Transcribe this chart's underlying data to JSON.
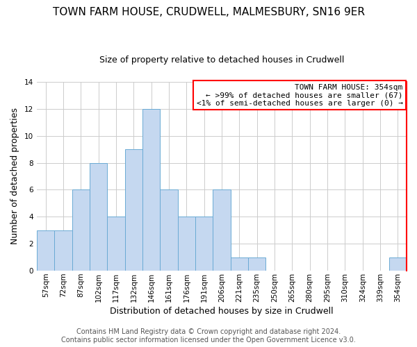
{
  "title": "TOWN FARM HOUSE, CRUDWELL, MALMESBURY, SN16 9ER",
  "subtitle": "Size of property relative to detached houses in Crudwell",
  "xlabel": "Distribution of detached houses by size in Crudwell",
  "ylabel": "Number of detached properties",
  "categories": [
    "57sqm",
    "72sqm",
    "87sqm",
    "102sqm",
    "117sqm",
    "132sqm",
    "146sqm",
    "161sqm",
    "176sqm",
    "191sqm",
    "206sqm",
    "221sqm",
    "235sqm",
    "250sqm",
    "265sqm",
    "280sqm",
    "295sqm",
    "310sqm",
    "324sqm",
    "339sqm",
    "354sqm"
  ],
  "values": [
    3,
    3,
    6,
    8,
    4,
    9,
    12,
    6,
    4,
    4,
    6,
    1,
    1,
    0,
    0,
    0,
    0,
    0,
    0,
    0,
    1
  ],
  "bar_color": "#c5d8f0",
  "bar_edge_color": "#6aaad4",
  "highlight_color": "red",
  "highlight_x_right": true,
  "ylim": [
    0,
    14
  ],
  "yticks": [
    0,
    2,
    4,
    6,
    8,
    10,
    12,
    14
  ],
  "annotation_title": "TOWN FARM HOUSE: 354sqm",
  "annotation_line1": "← >99% of detached houses are smaller (67)",
  "annotation_line2": "<1% of semi-detached houses are larger (0) →",
  "footer_line1": "Contains HM Land Registry data © Crown copyright and database right 2024.",
  "footer_line2": "Contains public sector information licensed under the Open Government Licence v3.0.",
  "background_color": "#ffffff",
  "plot_background_color": "#ffffff",
  "grid_color": "#cccccc",
  "title_fontsize": 11,
  "subtitle_fontsize": 9,
  "ylabel_fontsize": 9,
  "xlabel_fontsize": 9,
  "tick_fontsize": 7.5,
  "footer_fontsize": 7,
  "annotation_fontsize": 8
}
